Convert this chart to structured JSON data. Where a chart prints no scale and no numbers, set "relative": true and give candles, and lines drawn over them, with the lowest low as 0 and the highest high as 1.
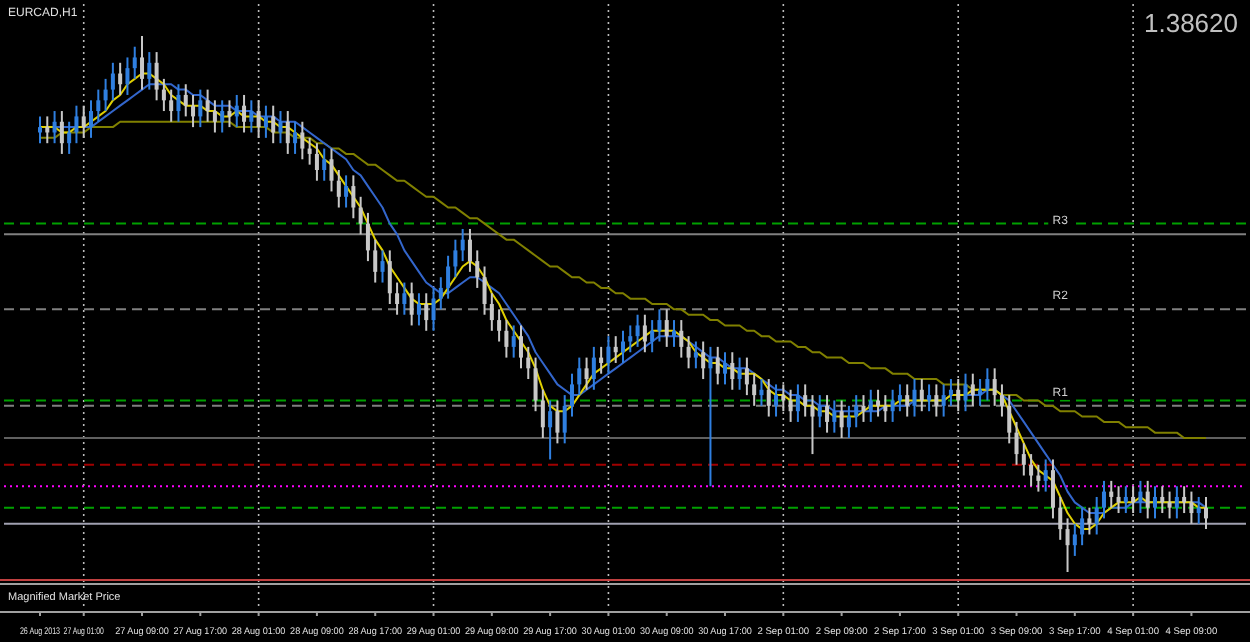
{
  "chart_data": {
    "type": "candlestick",
    "title": "EURCAD,H1",
    "relative": true,
    "grid": "x",
    "tick_labels": "x",
    "categories": [
      "26 Aug 2013",
      null,
      null,
      null,
      null,
      null,
      "27 Aug 01:00",
      null,
      null,
      null,
      null,
      null,
      null,
      null,
      "27 Aug 09:00",
      null,
      null,
      null,
      null,
      null,
      null,
      null,
      "27 Aug 17:00",
      null,
      null,
      null,
      null,
      null,
      null,
      null,
      "28 Aug 01:00",
      null,
      null,
      null,
      null,
      null,
      null,
      null,
      "28 Aug 09:00",
      null,
      null,
      null,
      null,
      null,
      null,
      null,
      "28 Aug 17:00",
      null,
      null,
      null,
      null,
      null,
      null,
      null,
      "29 Aug 01:00",
      null,
      null,
      null,
      null,
      null,
      null,
      null,
      "29 Aug 09:00",
      null,
      null,
      null,
      null,
      null,
      null,
      null,
      "29 Aug 17:00",
      null,
      null,
      null,
      null,
      null,
      null,
      null,
      "30 Aug 01:00",
      null,
      null,
      null,
      null,
      null,
      null,
      null,
      "30 Aug 09:00",
      null,
      null,
      null,
      null,
      null,
      null,
      null,
      "30 Aug 17:00",
      null,
      null,
      null,
      null,
      null,
      null,
      null,
      "2 Sep 01:00",
      null,
      null,
      null,
      null,
      null,
      null,
      null,
      "2 Sep 09:00",
      null,
      null,
      null,
      null,
      null,
      null,
      null,
      "2 Sep 17:00",
      null,
      null,
      null,
      null,
      null,
      null,
      null,
      "3 Sep 01:00",
      null,
      null,
      null,
      null,
      null,
      null,
      null,
      "3 Sep 09:00",
      null,
      null,
      null,
      null,
      null,
      null,
      null,
      "3 Sep 17:00",
      null,
      null,
      null,
      null,
      null,
      null,
      null,
      "4 Sep 01:00",
      null,
      null,
      null,
      null,
      null,
      null,
      null,
      "4 Sep 09:00",
      null,
      null
    ],
    "ohlc": [
      [
        0.82,
        0.85,
        0.8,
        0.83
      ],
      [
        0.83,
        0.85,
        0.8,
        0.82
      ],
      [
        0.82,
        0.86,
        0.8,
        0.84
      ],
      [
        0.84,
        0.86,
        0.78,
        0.8
      ],
      [
        0.8,
        0.84,
        0.78,
        0.82
      ],
      [
        0.82,
        0.87,
        0.8,
        0.85
      ],
      [
        0.85,
        0.87,
        0.81,
        0.83
      ],
      [
        0.83,
        0.88,
        0.81,
        0.86
      ],
      [
        0.86,
        0.9,
        0.84,
        0.88
      ],
      [
        0.88,
        0.92,
        0.86,
        0.9
      ],
      [
        0.9,
        0.95,
        0.88,
        0.93
      ],
      [
        0.93,
        0.95,
        0.89,
        0.91
      ],
      [
        0.91,
        0.96,
        0.89,
        0.94
      ],
      [
        0.94,
        0.98,
        0.92,
        0.96
      ],
      [
        0.96,
        1,
        0.9,
        0.92
      ],
      [
        0.92,
        0.97,
        0.9,
        0.95
      ],
      [
        0.95,
        0.97,
        0.88,
        0.9
      ],
      [
        0.9,
        0.92,
        0.86,
        0.88
      ],
      [
        0.88,
        0.9,
        0.84,
        0.86
      ],
      [
        0.86,
        0.91,
        0.84,
        0.89
      ],
      [
        0.89,
        0.91,
        0.85,
        0.87
      ],
      [
        0.87,
        0.89,
        0.83,
        0.85
      ],
      [
        0.85,
        0.9,
        0.83,
        0.88
      ],
      [
        0.88,
        0.9,
        0.84,
        0.86
      ],
      [
        0.86,
        0.88,
        0.82,
        0.84
      ],
      [
        0.84,
        0.88,
        0.82,
        0.86
      ],
      [
        0.86,
        0.88,
        0.83,
        0.85
      ],
      [
        0.85,
        0.89,
        0.83,
        0.87
      ],
      [
        0.87,
        0.89,
        0.82,
        0.84
      ],
      [
        0.84,
        0.88,
        0.82,
        0.86
      ],
      [
        0.86,
        0.88,
        0.81,
        0.83
      ],
      [
        0.83,
        0.87,
        0.81,
        0.85
      ],
      [
        0.85,
        0.87,
        0.8,
        0.82
      ],
      [
        0.82,
        0.86,
        0.8,
        0.84
      ],
      [
        0.84,
        0.86,
        0.78,
        0.8
      ],
      [
        0.8,
        0.84,
        0.78,
        0.82
      ],
      [
        0.82,
        0.84,
        0.77,
        0.79
      ],
      [
        0.79,
        0.81,
        0.76,
        0.78
      ],
      [
        0.78,
        0.8,
        0.73,
        0.75
      ],
      [
        0.75,
        0.79,
        0.73,
        0.77
      ],
      [
        0.77,
        0.79,
        0.71,
        0.73
      ],
      [
        0.73,
        0.75,
        0.68,
        0.7
      ],
      [
        0.7,
        0.74,
        0.68,
        0.72
      ],
      [
        0.72,
        0.74,
        0.66,
        0.68
      ],
      [
        0.68,
        0.7,
        0.63,
        0.65
      ],
      [
        0.65,
        0.67,
        0.58,
        0.6
      ],
      [
        0.6,
        0.62,
        0.54,
        0.56
      ],
      [
        0.56,
        0.6,
        0.54,
        0.58
      ],
      [
        0.58,
        0.6,
        0.5,
        0.52
      ],
      [
        0.52,
        0.54,
        0.48,
        0.5
      ],
      [
        0.5,
        0.54,
        0.48,
        0.52
      ],
      [
        0.52,
        0.54,
        0.46,
        0.48
      ],
      [
        0.48,
        0.52,
        0.46,
        0.5
      ],
      [
        0.5,
        0.52,
        0.45,
        0.47
      ],
      [
        0.47,
        0.53,
        0.45,
        0.51
      ],
      [
        0.51,
        0.55,
        0.49,
        0.53
      ],
      [
        0.53,
        0.59,
        0.51,
        0.57
      ],
      [
        0.57,
        0.62,
        0.55,
        0.6
      ],
      [
        0.6,
        0.64,
        0.58,
        0.62
      ],
      [
        0.62,
        0.64,
        0.56,
        0.58
      ],
      [
        0.58,
        0.6,
        0.53,
        0.55
      ],
      [
        0.55,
        0.57,
        0.48,
        0.5
      ],
      [
        0.5,
        0.52,
        0.45,
        0.47
      ],
      [
        0.47,
        0.49,
        0.43,
        0.45
      ],
      [
        0.45,
        0.47,
        0.4,
        0.42
      ],
      [
        0.42,
        0.46,
        0.4,
        0.44
      ],
      [
        0.44,
        0.46,
        0.38,
        0.4
      ],
      [
        0.4,
        0.42,
        0.36,
        0.38
      ],
      [
        0.38,
        0.4,
        0.3,
        0.32
      ],
      [
        0.32,
        0.34,
        0.25,
        0.27
      ],
      [
        0.27,
        0.32,
        0.21,
        0.3
      ],
      [
        0.3,
        0.32,
        0.24,
        0.26
      ],
      [
        0.26,
        0.33,
        0.24,
        0.31
      ],
      [
        0.31,
        0.37,
        0.29,
        0.35
      ],
      [
        0.35,
        0.4,
        0.33,
        0.38
      ],
      [
        0.38,
        0.4,
        0.34,
        0.36
      ],
      [
        0.36,
        0.42,
        0.34,
        0.4
      ],
      [
        0.4,
        0.42,
        0.37,
        0.39
      ],
      [
        0.39,
        0.44,
        0.37,
        0.42
      ],
      [
        0.42,
        0.44,
        0.39,
        0.41
      ],
      [
        0.41,
        0.45,
        0.39,
        0.43
      ],
      [
        0.43,
        0.46,
        0.41,
        0.44
      ],
      [
        0.44,
        0.48,
        0.42,
        0.46
      ],
      [
        0.46,
        0.48,
        0.41,
        0.43
      ],
      [
        0.43,
        0.47,
        0.41,
        0.45
      ],
      [
        0.45,
        0.49,
        0.43,
        0.47
      ],
      [
        0.47,
        0.49,
        0.42,
        0.44
      ],
      [
        0.44,
        0.47,
        0.42,
        0.45
      ],
      [
        0.45,
        0.47,
        0.4,
        0.42
      ],
      [
        0.42,
        0.44,
        0.38,
        0.4
      ],
      [
        0.4,
        0.43,
        0.38,
        0.41
      ],
      [
        0.41,
        0.43,
        0.36,
        0.38
      ],
      [
        0.38,
        0.42,
        0.16,
        0.4
      ],
      [
        0.4,
        0.42,
        0.35,
        0.37
      ],
      [
        0.37,
        0.41,
        0.35,
        0.39
      ],
      [
        0.39,
        0.41,
        0.34,
        0.36
      ],
      [
        0.36,
        0.4,
        0.34,
        0.38
      ],
      [
        0.38,
        0.4,
        0.33,
        0.35
      ],
      [
        0.35,
        0.37,
        0.31,
        0.33
      ],
      [
        0.33,
        0.36,
        0.31,
        0.34
      ],
      [
        0.34,
        0.36,
        0.29,
        0.31
      ],
      [
        0.31,
        0.35,
        0.29,
        0.33
      ],
      [
        0.33,
        0.35,
        0.3,
        0.32
      ],
      [
        0.32,
        0.34,
        0.28,
        0.3
      ],
      [
        0.3,
        0.35,
        0.28,
        0.33
      ],
      [
        0.33,
        0.35,
        0.29,
        0.31
      ],
      [
        0.31,
        0.33,
        0.22,
        0.29
      ],
      [
        0.29,
        0.33,
        0.27,
        0.31
      ],
      [
        0.31,
        0.33,
        0.26,
        0.28
      ],
      [
        0.28,
        0.32,
        0.26,
        0.3
      ],
      [
        0.3,
        0.32,
        0.25,
        0.27
      ],
      [
        0.27,
        0.31,
        0.25,
        0.29
      ],
      [
        0.29,
        0.33,
        0.27,
        0.31
      ],
      [
        0.31,
        0.33,
        0.28,
        0.3
      ],
      [
        0.3,
        0.34,
        0.28,
        0.32
      ],
      [
        0.32,
        0.34,
        0.29,
        0.31
      ],
      [
        0.31,
        0.33,
        0.28,
        0.3
      ],
      [
        0.3,
        0.34,
        0.28,
        0.32
      ],
      [
        0.32,
        0.35,
        0.3,
        0.33
      ],
      [
        0.33,
        0.35,
        0.29,
        0.31
      ],
      [
        0.31,
        0.36,
        0.29,
        0.34
      ],
      [
        0.34,
        0.36,
        0.3,
        0.32
      ],
      [
        0.32,
        0.35,
        0.3,
        0.33
      ],
      [
        0.33,
        0.35,
        0.29,
        0.31
      ],
      [
        0.31,
        0.35,
        0.29,
        0.33
      ],
      [
        0.33,
        0.36,
        0.31,
        0.34
      ],
      [
        0.34,
        0.36,
        0.3,
        0.32
      ],
      [
        0.32,
        0.37,
        0.3,
        0.35
      ],
      [
        0.35,
        0.37,
        0.31,
        0.33
      ],
      [
        0.33,
        0.36,
        0.31,
        0.34
      ],
      [
        0.34,
        0.38,
        0.32,
        0.36
      ],
      [
        0.36,
        0.38,
        0.31,
        0.33
      ],
      [
        0.33,
        0.35,
        0.29,
        0.31
      ],
      [
        0.31,
        0.33,
        0.24,
        0.26
      ],
      [
        0.26,
        0.28,
        0.2,
        0.22
      ],
      [
        0.22,
        0.24,
        0.18,
        0.2
      ],
      [
        0.2,
        0.22,
        0.16,
        0.18
      ],
      [
        0.18,
        0.2,
        0.15,
        0.17
      ],
      [
        0.17,
        0.21,
        0.15,
        0.19
      ],
      [
        0.19,
        0.21,
        0.1,
        0.12
      ],
      [
        0.12,
        0.14,
        0.06,
        0.08
      ],
      [
        0.08,
        0.1,
        0,
        0.05
      ],
      [
        0.05,
        0.09,
        0.03,
        0.07
      ],
      [
        0.07,
        0.12,
        0.05,
        0.1
      ],
      [
        0.1,
        0.12,
        0.07,
        0.09
      ],
      [
        0.09,
        0.14,
        0.07,
        0.12
      ],
      [
        0.12,
        0.17,
        0.1,
        0.15
      ],
      [
        0.15,
        0.17,
        0.12,
        0.14
      ],
      [
        0.14,
        0.16,
        0.11,
        0.13
      ],
      [
        0.13,
        0.16,
        0.11,
        0.14
      ],
      [
        0.14,
        0.16,
        0.11,
        0.13
      ],
      [
        0.13,
        0.17,
        0.11,
        0.15
      ],
      [
        0.15,
        0.17,
        0.1,
        0.12
      ],
      [
        0.12,
        0.16,
        0.1,
        0.14
      ],
      [
        0.14,
        0.16,
        0.11,
        0.13
      ],
      [
        0.13,
        0.15,
        0.1,
        0.12
      ],
      [
        0.12,
        0.16,
        0.1,
        0.14
      ],
      [
        0.14,
        0.16,
        0.11,
        0.13
      ],
      [
        0.13,
        0.15,
        0.09,
        0.11
      ],
      [
        0.11,
        0.14,
        0.09,
        0.12
      ],
      [
        0.12,
        0.14,
        0.08,
        0.1
      ]
    ],
    "series": [
      {
        "type": "line",
        "color": "#808000",
        "values": [
          0.81,
          0.81,
          0.81,
          0.82,
          0.82,
          0.82,
          0.82,
          0.83,
          0.83,
          0.83,
          0.83,
          0.84,
          0.84,
          0.84,
          0.84,
          0.84,
          0.84,
          0.84,
          0.84,
          0.84,
          0.84,
          0.84,
          0.84,
          0.84,
          0.84,
          0.84,
          0.84,
          0.83,
          0.83,
          0.83,
          0.83,
          0.83,
          0.82,
          0.82,
          0.82,
          0.81,
          0.81,
          0.81,
          0.8,
          0.8,
          0.79,
          0.79,
          0.78,
          0.78,
          0.77,
          0.76,
          0.76,
          0.75,
          0.74,
          0.73,
          0.73,
          0.72,
          0.71,
          0.7,
          0.7,
          0.69,
          0.68,
          0.68,
          0.67,
          0.66,
          0.66,
          0.65,
          0.64,
          0.63,
          0.62,
          0.62,
          0.61,
          0.6,
          0.59,
          0.58,
          0.57,
          0.57,
          0.56,
          0.55,
          0.55,
          0.54,
          0.54,
          0.53,
          0.53,
          0.52,
          0.52,
          0.51,
          0.51,
          0.51,
          0.5,
          0.5,
          0.5,
          0.49,
          0.49,
          0.48,
          0.48,
          0.48,
          0.47,
          0.47,
          0.46,
          0.46,
          0.46,
          0.45,
          0.45,
          0.44,
          0.44,
          0.43,
          0.43,
          0.43,
          0.42,
          0.42,
          0.41,
          0.41,
          0.4,
          0.4,
          0.4,
          0.39,
          0.39,
          0.39,
          0.38,
          0.38,
          0.38,
          0.37,
          0.37,
          0.37,
          0.36,
          0.36,
          0.36,
          0.36,
          0.35,
          0.35,
          0.35,
          0.35,
          0.34,
          0.34,
          0.34,
          0.34,
          0.33,
          0.33,
          0.33,
          0.32,
          0.32,
          0.32,
          0.31,
          0.31,
          0.3,
          0.3,
          0.3,
          0.29,
          0.29,
          0.29,
          0.28,
          0.28,
          0.28,
          0.27,
          0.27,
          0.27,
          0.27,
          0.26,
          0.26,
          0.26,
          0.26,
          0.25,
          0.25,
          0.25,
          0.25
        ]
      },
      {
        "type": "line",
        "color": "#3366cc",
        "values": [
          0.83,
          0.83,
          0.83,
          0.83,
          0.83,
          0.83,
          0.83,
          0.83,
          0.84,
          0.85,
          0.86,
          0.87,
          0.88,
          0.89,
          0.9,
          0.91,
          0.91,
          0.91,
          0.91,
          0.9,
          0.9,
          0.89,
          0.89,
          0.88,
          0.87,
          0.87,
          0.87,
          0.86,
          0.86,
          0.86,
          0.85,
          0.85,
          0.85,
          0.84,
          0.84,
          0.84,
          0.83,
          0.82,
          0.81,
          0.8,
          0.79,
          0.78,
          0.77,
          0.75,
          0.74,
          0.72,
          0.7,
          0.68,
          0.65,
          0.63,
          0.6,
          0.58,
          0.56,
          0.54,
          0.53,
          0.52,
          0.52,
          0.53,
          0.54,
          0.55,
          0.55,
          0.54,
          0.53,
          0.52,
          0.5,
          0.48,
          0.46,
          0.44,
          0.41,
          0.39,
          0.37,
          0.35,
          0.34,
          0.33,
          0.33,
          0.34,
          0.35,
          0.36,
          0.37,
          0.38,
          0.39,
          0.4,
          0.41,
          0.42,
          0.43,
          0.44,
          0.44,
          0.44,
          0.44,
          0.43,
          0.42,
          0.41,
          0.4,
          0.4,
          0.39,
          0.38,
          0.38,
          0.38,
          0.37,
          0.36,
          0.35,
          0.34,
          0.34,
          0.33,
          0.33,
          0.32,
          0.32,
          0.31,
          0.31,
          0.3,
          0.3,
          0.3,
          0.3,
          0.3,
          0.3,
          0.3,
          0.31,
          0.31,
          0.31,
          0.31,
          0.32,
          0.32,
          0.32,
          0.32,
          0.32,
          0.33,
          0.33,
          0.33,
          0.33,
          0.33,
          0.34,
          0.34,
          0.33,
          0.32,
          0.3,
          0.28,
          0.26,
          0.24,
          0.22,
          0.2,
          0.18,
          0.15,
          0.13,
          0.12,
          0.11,
          0.11,
          0.11,
          0.12,
          0.12,
          0.12,
          0.13,
          0.13,
          0.13,
          0.13,
          0.13,
          0.13,
          0.13,
          0.13,
          0.13,
          0.13,
          0.12
        ]
      },
      {
        "type": "line",
        "color": "#e0d000",
        "values": [
          0.83,
          0.83,
          0.83,
          0.82,
          0.82,
          0.83,
          0.83,
          0.84,
          0.85,
          0.86,
          0.88,
          0.89,
          0.91,
          0.92,
          0.93,
          0.93,
          0.92,
          0.91,
          0.89,
          0.88,
          0.87,
          0.87,
          0.87,
          0.86,
          0.86,
          0.85,
          0.85,
          0.86,
          0.85,
          0.85,
          0.85,
          0.84,
          0.84,
          0.83,
          0.83,
          0.82,
          0.81,
          0.8,
          0.79,
          0.77,
          0.76,
          0.74,
          0.72,
          0.7,
          0.68,
          0.65,
          0.62,
          0.6,
          0.57,
          0.55,
          0.53,
          0.51,
          0.5,
          0.5,
          0.5,
          0.51,
          0.53,
          0.55,
          0.57,
          0.58,
          0.57,
          0.55,
          0.52,
          0.5,
          0.47,
          0.45,
          0.43,
          0.41,
          0.38,
          0.34,
          0.31,
          0.3,
          0.3,
          0.31,
          0.33,
          0.35,
          0.37,
          0.38,
          0.39,
          0.4,
          0.41,
          0.42,
          0.43,
          0.44,
          0.45,
          0.45,
          0.45,
          0.45,
          0.44,
          0.43,
          0.41,
          0.4,
          0.39,
          0.39,
          0.38,
          0.38,
          0.37,
          0.37,
          0.37,
          0.36,
          0.34,
          0.33,
          0.33,
          0.32,
          0.32,
          0.31,
          0.31,
          0.3,
          0.3,
          0.29,
          0.29,
          0.29,
          0.29,
          0.3,
          0.31,
          0.31,
          0.31,
          0.31,
          0.32,
          0.32,
          0.32,
          0.32,
          0.32,
          0.32,
          0.32,
          0.33,
          0.33,
          0.33,
          0.34,
          0.34,
          0.34,
          0.34,
          0.33,
          0.3,
          0.27,
          0.24,
          0.21,
          0.19,
          0.18,
          0.17,
          0.14,
          0.11,
          0.09,
          0.08,
          0.08,
          0.09,
          0.11,
          0.12,
          0.13,
          0.13,
          0.13,
          0.14,
          0.13,
          0.13,
          0.13,
          0.13,
          0.13,
          0.13,
          0.13,
          0.12,
          0.12
        ]
      }
    ],
    "ref_lines": [
      {
        "axis": "y",
        "value": 0.65,
        "color": "#00a000",
        "line_style": "dashed"
      },
      {
        "axis": "y",
        "value": 0.63,
        "label": "R3",
        "color": "#808080"
      },
      {
        "axis": "y",
        "value": 0.49,
        "label": "R2",
        "color": "#808080",
        "line_style": "dashed"
      },
      {
        "axis": "y",
        "value": 0.32,
        "color": "#00a000",
        "line_style": "dashed"
      },
      {
        "axis": "y",
        "value": 0.31,
        "label": "R1",
        "color": "#808080",
        "line_style": "dashed"
      },
      {
        "axis": "y",
        "value": 0.25,
        "color": "#606060"
      },
      {
        "axis": "y",
        "value": 0.2,
        "color": "#a00000",
        "line_style": "dashed"
      },
      {
        "axis": "y",
        "value": 0.16,
        "color": "#ff00ff",
        "line_style": "dotted"
      },
      {
        "axis": "y",
        "value": 0.12,
        "color": "#00a000",
        "line_style": "dashed"
      },
      {
        "axis": "y",
        "value": 0.09,
        "color": "#a0a0b0"
      }
    ],
    "annotations": [
      "1.38620",
      "Magnified Market Price"
    ]
  }
}
